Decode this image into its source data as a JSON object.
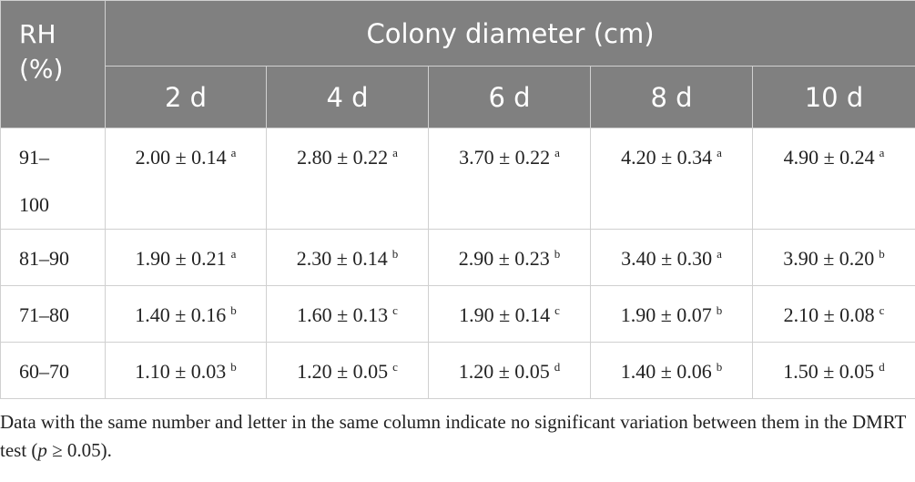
{
  "header": {
    "rh_lines": [
      "RH",
      "(%)"
    ],
    "group_title": "Colony diameter (cm)",
    "days": [
      "2 d",
      "4 d",
      "6 d",
      "8 d",
      "10 d"
    ]
  },
  "table": {
    "rows": [
      {
        "rh": "91–100",
        "cells": [
          {
            "text": "2.00 ± 0.14",
            "sup": "a"
          },
          {
            "text": "2.80 ± 0.22",
            "sup": "a"
          },
          {
            "text": "3.70 ± 0.22",
            "sup": "a"
          },
          {
            "text": "4.20 ± 0.34",
            "sup": "a"
          },
          {
            "text": "4.90 ± 0.24",
            "sup": "a"
          }
        ]
      },
      {
        "rh": "81–90",
        "cells": [
          {
            "text": "1.90 ± 0.21",
            "sup": "a"
          },
          {
            "text": "2.30 ± 0.14",
            "sup": "b"
          },
          {
            "text": "2.90 ± 0.23",
            "sup": "b"
          },
          {
            "text": "3.40 ± 0.30",
            "sup": "a"
          },
          {
            "text": "3.90 ± 0.20",
            "sup": "b"
          }
        ]
      },
      {
        "rh": "71–80",
        "cells": [
          {
            "text": "1.40 ± 0.16",
            "sup": "b"
          },
          {
            "text": "1.60 ± 0.13",
            "sup": "c"
          },
          {
            "text": "1.90 ± 0.14",
            "sup": "c"
          },
          {
            "text": "1.90 ± 0.07",
            "sup": "b"
          },
          {
            "text": "2.10 ± 0.08",
            "sup": "c"
          }
        ]
      },
      {
        "rh": "60–70",
        "cells": [
          {
            "text": "1.10 ± 0.03",
            "sup": "b"
          },
          {
            "text": "1.20 ± 0.05",
            "sup": "c"
          },
          {
            "text": "1.20 ± 0.05",
            "sup": "d"
          },
          {
            "text": "1.40 ± 0.06",
            "sup": "b"
          },
          {
            "text": "1.50 ± 0.05",
            "sup": "d"
          }
        ]
      }
    ]
  },
  "footnote": {
    "before": "Data with the same number and letter in the same column indicate no significant variation between them in the DMRT test (",
    "italic": "p",
    "after": " ≥ 0.05)."
  }
}
